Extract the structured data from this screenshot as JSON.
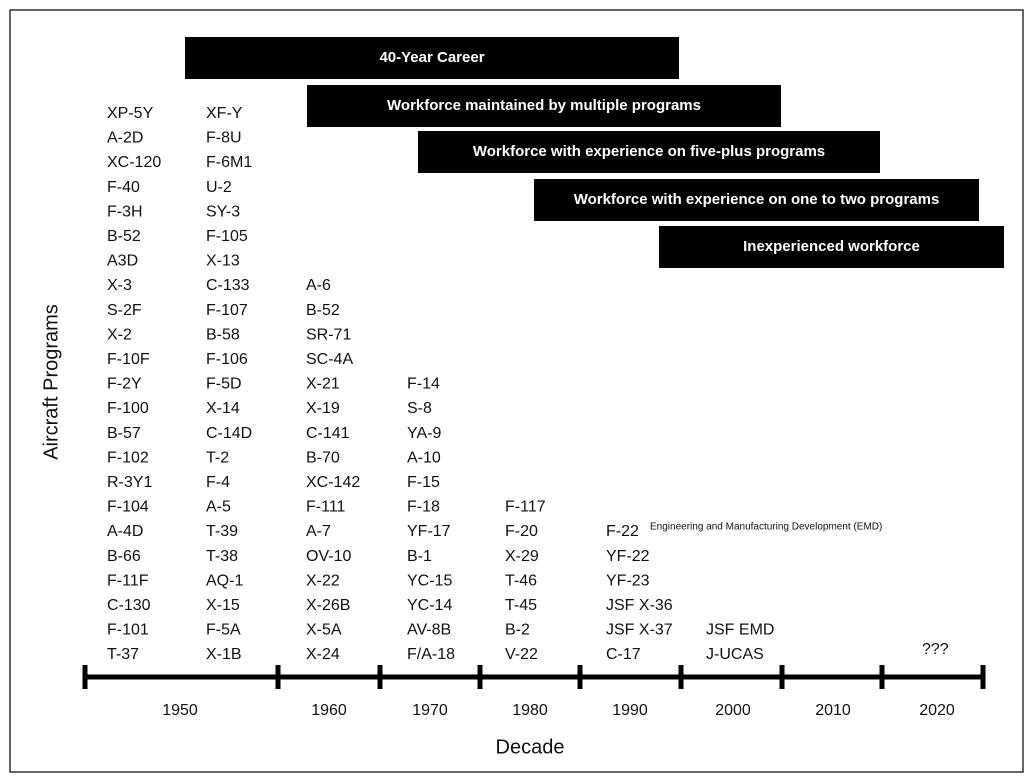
{
  "bars": [
    "40-Year Career",
    "Workforce maintained by multiple programs",
    "Workforce with experience on five-plus programs",
    "Workforce with experience on one to two programs",
    "Inexperienced workforce"
  ],
  "columns": [
    [
      "XP-5Y",
      "A-2D",
      "XC-120",
      "F-40",
      "F-3H",
      "B-52",
      "A3D",
      "X-3",
      "S-2F",
      "X-2",
      "F-10F",
      "F-2Y",
      "F-100",
      "B-57",
      "F-102",
      "R-3Y1",
      "F-104",
      "A-4D",
      "B-66",
      "F-11F",
      "C-130",
      "F-101",
      "T-37"
    ],
    [
      "XF-Y",
      "F-8U",
      "F-6M1",
      "U-2",
      "SY-3",
      "F-105",
      "X-13",
      "C-133",
      "F-107",
      "B-58",
      "F-106",
      "F-5D",
      "X-14",
      "C-14D",
      "T-2",
      "F-4",
      "A-5",
      "T-39",
      "T-38",
      "AQ-1",
      "X-15",
      "F-5A",
      "X-1B"
    ],
    [
      "A-6",
      "B-52",
      "SR-71",
      "SC-4A",
      "X-21",
      "X-19",
      "C-141",
      "B-70",
      "XC-142",
      "F-111",
      "A-7",
      "OV-10",
      "X-22",
      "X-26B",
      "X-5A",
      "X-24"
    ],
    [
      "F-14",
      "S-8",
      "YA-9",
      "A-10",
      "F-15",
      "F-18",
      "YF-17",
      "B-1",
      "YC-15",
      "YC-14",
      "AV-8B",
      "F/A-18"
    ],
    [
      "F-117",
      "F-20",
      "X-29",
      "T-46",
      "T-45",
      "B-2",
      "V-22"
    ],
    [
      "F-22",
      "YF-22",
      "YF-23",
      "JSF X-36",
      "JSF X-37",
      "C-17"
    ],
    [
      "JSF EMD",
      "J-UCAS"
    ],
    [
      "???"
    ]
  ],
  "annotation": "Engineering and Manufacturing Development (EMD)",
  "decades": [
    "1950",
    "1960",
    "1970",
    "1980",
    "1990",
    "2000",
    "2010",
    "2020"
  ],
  "y_label": "Aircraft Programs",
  "x_label": "Decade"
}
